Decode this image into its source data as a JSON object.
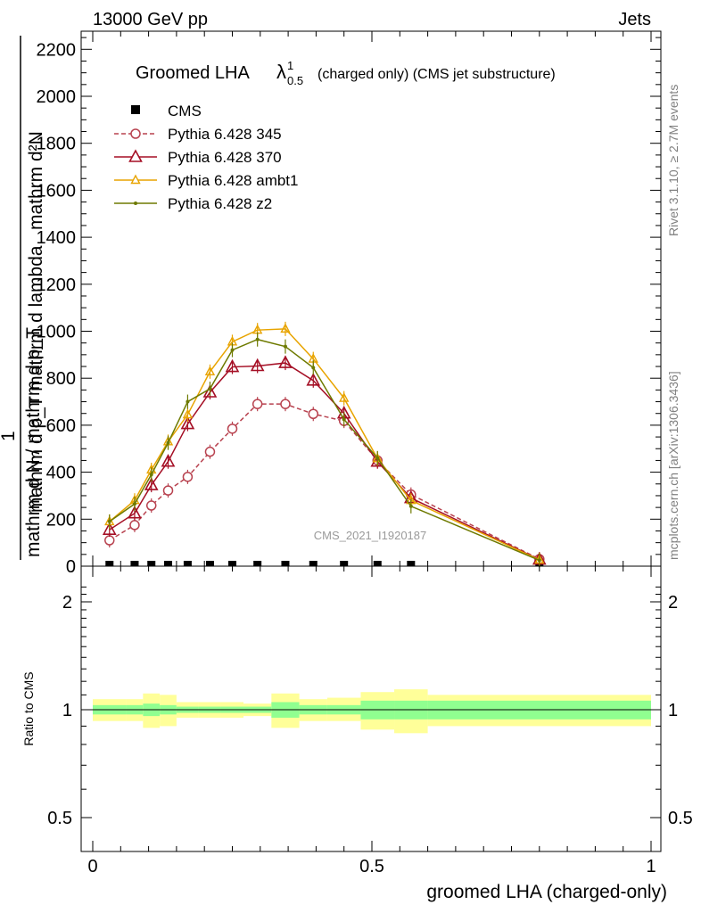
{
  "header": {
    "left": "13000 GeV pp",
    "right": "Jets"
  },
  "title": {
    "main": "Groomed LHA",
    "lambda": "λ",
    "sup": "1",
    "sub": "0.5",
    "rest": "(charged only) (CMS jet substructure)"
  },
  "ylabel": {
    "top": "mathrm d²N",
    "bottom": "mathrm d p_T mathrm d lambda",
    "one": "1",
    "denom": "mathrm d N / mathrm d p_T"
  },
  "side_labels": {
    "rivet": "Rivet 3.1.10, ≥ 2.7M events",
    "mcplots": "mcplots.cern.ch [arXiv:1306.3436]"
  },
  "watermark": "CMS_2021_I1920187",
  "ratio_ylabel": "Ratio to CMS",
  "xlabel": "groomed LHA (charged-only)",
  "chart_data": [
    {
      "type": "line",
      "xlim": [
        0,
        1
      ],
      "ylim": [
        0,
        2300
      ],
      "yticks": [
        0,
        200,
        400,
        600,
        800,
        1000,
        1200,
        1400,
        1600,
        1800,
        2000,
        2200
      ],
      "ytick_labels": [
        "0",
        "200",
        "400",
        "600",
        "800",
        "1000",
        "1200",
        "1400",
        "1600",
        "1800",
        "2000",
        "2200"
      ],
      "legend_position": "top-left",
      "x": [
        0.03,
        0.075,
        0.105,
        0.135,
        0.17,
        0.21,
        0.25,
        0.295,
        0.345,
        0.395,
        0.45,
        0.51,
        0.57,
        0.8
      ],
      "series": [
        {
          "name": "CMS",
          "color": "#000000",
          "marker": "square",
          "values": [
            0,
            0,
            0,
            0,
            0,
            0,
            0,
            0,
            0,
            0,
            0,
            0,
            0,
            0
          ]
        },
        {
          "name": "Pythia 6.428 345",
          "color": "#b8424f",
          "marker": "open-circle",
          "dashed": true,
          "values": [
            110,
            175,
            258,
            322,
            380,
            487,
            585,
            690,
            690,
            648,
            618,
            450,
            305,
            30
          ]
        },
        {
          "name": "Pythia 6.428 370",
          "color": "#a50f25",
          "marker": "open-triangle",
          "values": [
            155,
            225,
            345,
            445,
            605,
            740,
            848,
            852,
            865,
            790,
            650,
            445,
            290,
            28
          ]
        },
        {
          "name": "Pythia 6.428 ambt1",
          "color": "#e8a400",
          "marker": "open-triangle-small",
          "values": [
            190,
            280,
            410,
            530,
            645,
            828,
            955,
            1005,
            1010,
            882,
            715,
            458,
            280,
            27
          ]
        },
        {
          "name": "Pythia 6.428 z2",
          "color": "#6e7a00",
          "marker": "dot",
          "values": [
            190,
            265,
            390,
            525,
            700,
            755,
            920,
            965,
            935,
            845,
            625,
            460,
            255,
            25
          ]
        }
      ]
    },
    {
      "type": "area",
      "xlim": [
        0,
        1
      ],
      "ylim": [
        0.4,
        2.3
      ],
      "log_scale": true,
      "yticks": [
        0.5,
        1,
        2
      ],
      "ytick_labels": [
        "0.5",
        "1",
        "2"
      ],
      "xticks": [
        0,
        0.5,
        1
      ],
      "xtick_labels": [
        "0",
        "0.5",
        "1"
      ],
      "reference_value": 1,
      "bin_edges": [
        0,
        0.06,
        0.09,
        0.12,
        0.15,
        0.19,
        0.23,
        0.27,
        0.32,
        0.37,
        0.42,
        0.48,
        0.54,
        0.6,
        1.0
      ],
      "stat_band": {
        "color": "#90ff90",
        "lo": [
          0.97,
          0.97,
          0.96,
          0.97,
          0.98,
          0.98,
          0.98,
          0.98,
          0.95,
          0.97,
          0.97,
          0.94,
          0.94,
          0.94
        ],
        "hi": [
          1.03,
          1.03,
          1.04,
          1.03,
          1.02,
          1.02,
          1.02,
          1.02,
          1.05,
          1.03,
          1.03,
          1.06,
          1.06,
          1.06
        ]
      },
      "syst_band": {
        "color": "#ffff99",
        "lo": [
          0.93,
          0.93,
          0.89,
          0.9,
          0.95,
          0.95,
          0.95,
          0.96,
          0.89,
          0.93,
          0.93,
          0.88,
          0.86,
          0.9
        ],
        "hi": [
          1.07,
          1.07,
          1.11,
          1.1,
          1.05,
          1.05,
          1.05,
          1.04,
          1.11,
          1.07,
          1.08,
          1.12,
          1.14,
          1.1
        ]
      }
    }
  ]
}
